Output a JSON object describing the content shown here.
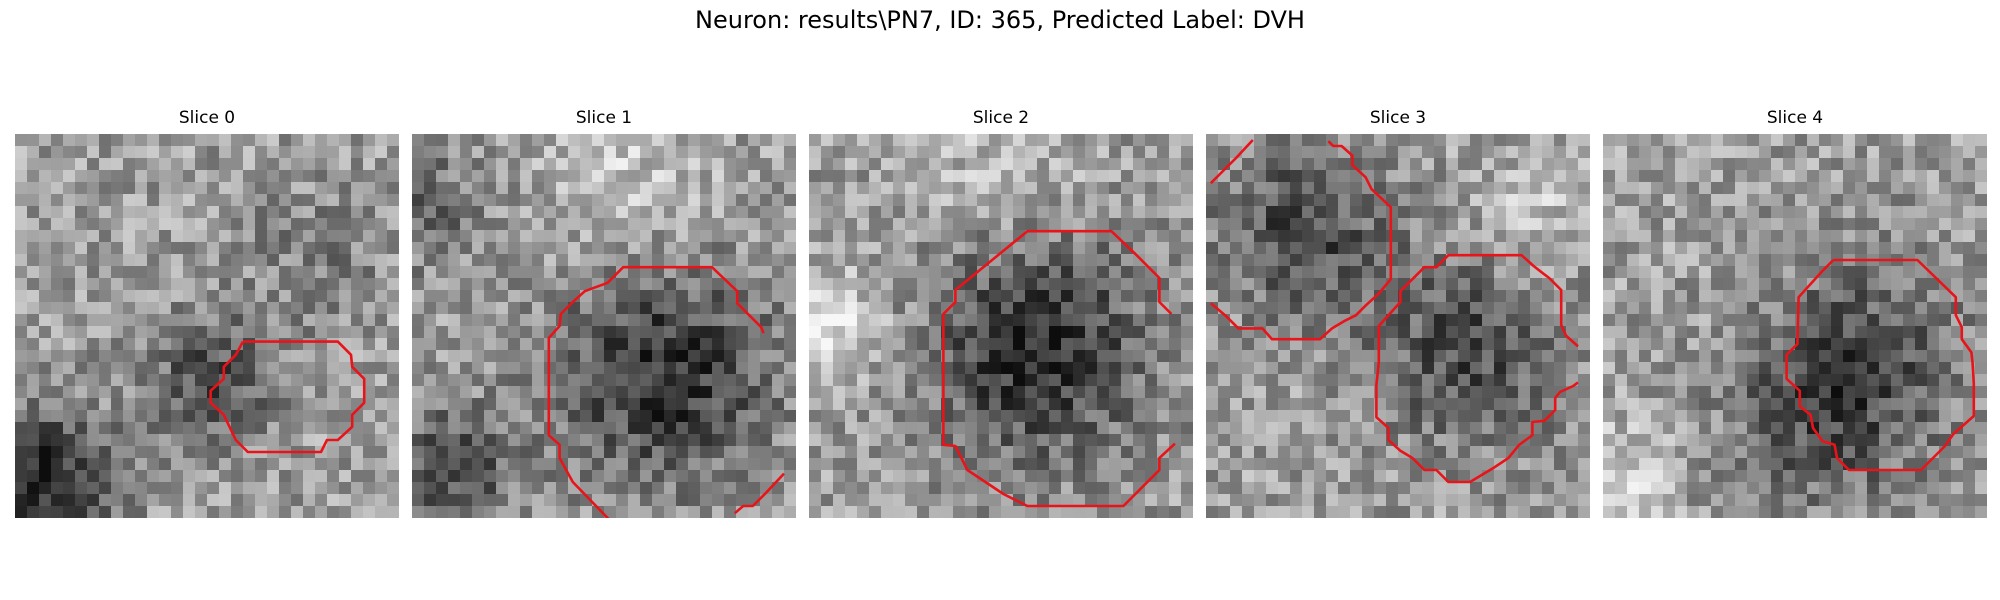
{
  "figure": {
    "title": "Neuron: results\\PN7, ID: 365, Predicted Label: DVH"
  },
  "panels": [
    {
      "title": "Slice 0"
    },
    {
      "title": "Slice 1"
    },
    {
      "title": "Slice 2"
    },
    {
      "title": "Slice 3"
    },
    {
      "title": "Slice 4"
    }
  ],
  "colors": {
    "contour": "#e8141a",
    "background": "#ffffff"
  }
}
